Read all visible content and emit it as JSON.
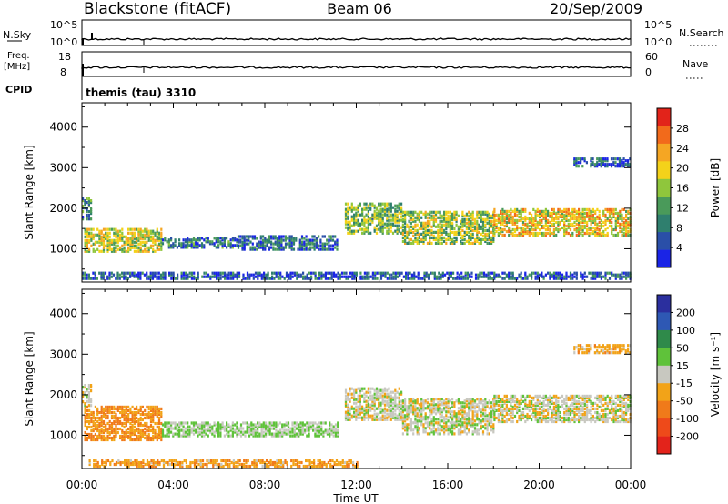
{
  "header": {
    "station": "Blackstone (fitACF)",
    "beam": "Beam 06",
    "date": "20/Sep/2009"
  },
  "top_panels": {
    "nsky_label": "N.Sky",
    "nsky_ticks": [
      "10^5",
      "10^0"
    ],
    "nsearch_label": "N.Search",
    "nsearch_ticks": [
      "10^5",
      "10^0"
    ],
    "freq_label_1": "Freq.",
    "freq_label_2": "[MHz]",
    "freq_ticks": [
      "18",
      "8"
    ],
    "nave_label": "Nave",
    "nave_ticks": [
      "60",
      "0"
    ],
    "cpid_label": "CPID",
    "cpid_text": "themis (tau) 3310"
  },
  "colors": {
    "power": [
      "#1a24e6",
      "#2a4fa8",
      "#2f7f6e",
      "#4a9a5a",
      "#8fc63c",
      "#f4d21a",
      "#f5a623",
      "#f26a1b",
      "#e2231a"
    ],
    "velocity": [
      "#2b2f9e",
      "#2e58b4",
      "#2f8a4a",
      "#5fc23a",
      "#c8c8c0",
      "#f2a318",
      "#f07a1a",
      "#ee4a1a",
      "#e3231b"
    ]
  },
  "chart_data": [
    {
      "type": "heatmap",
      "name": "power",
      "ylabel": "Slant Range [km]",
      "xlabel": "Time UT",
      "xticks": [
        "00:00",
        "04:00",
        "08:00",
        "12:00",
        "16:00",
        "20:00",
        "00:00"
      ],
      "yticks": [
        1000,
        2000,
        3000,
        4000
      ],
      "ylim": [
        180,
        4600
      ],
      "colorbar_label": "Power [dB]",
      "colorbar_ticks": [
        4,
        8,
        12,
        16,
        20,
        24,
        28
      ],
      "colorbar_range": [
        0,
        32
      ],
      "echo_bands": [
        {
          "t0": 0.1,
          "t1": 3.5,
          "r0": 900,
          "r1": 1450,
          "p": 18
        },
        {
          "t0": 0.0,
          "t1": 0.4,
          "r0": 1700,
          "r1": 2200,
          "p": 10
        },
        {
          "t0": 3.5,
          "t1": 6.8,
          "r0": 1000,
          "r1": 1250,
          "p": 8
        },
        {
          "t0": 6.8,
          "t1": 11.2,
          "r0": 950,
          "r1": 1300,
          "p": 7
        },
        {
          "t0": 11.5,
          "t1": 14.0,
          "r0": 1350,
          "r1": 2100,
          "p": 14
        },
        {
          "t0": 14.0,
          "t1": 18.0,
          "r0": 1100,
          "r1": 1900,
          "p": 16
        },
        {
          "t0": 18.0,
          "t1": 24.0,
          "r0": 1300,
          "r1": 1950,
          "p": 20
        },
        {
          "t0": 21.5,
          "t1": 24.0,
          "r0": 3000,
          "r1": 3200,
          "p": 6
        },
        {
          "t0": 0.0,
          "t1": 24.0,
          "r0": 230,
          "r1": 380,
          "p": 6
        }
      ]
    },
    {
      "type": "heatmap",
      "name": "velocity",
      "ylabel": "Slant Range [km]",
      "xlabel": "Time UT",
      "xticks": [
        "00:00",
        "04:00",
        "08:00",
        "12:00",
        "16:00",
        "20:00",
        "00:00"
      ],
      "yticks": [
        1000,
        2000,
        3000,
        4000
      ],
      "ylim": [
        180,
        4600
      ],
      "colorbar_label": "Velocity [m s⁻¹]",
      "colorbar_ticks": [
        "200",
        "100",
        "50",
        "15",
        "-15",
        "-50",
        "-100",
        "-200"
      ],
      "echo_bands": [
        {
          "t0": 0.1,
          "t1": 3.5,
          "r0": 850,
          "r1": 1700,
          "v": -50
        },
        {
          "t0": 0.0,
          "t1": 0.4,
          "r0": 1700,
          "r1": 2200,
          "v": 0
        },
        {
          "t0": 3.5,
          "t1": 11.2,
          "r0": 950,
          "r1": 1300,
          "v": 20
        },
        {
          "t0": 0.3,
          "t1": 12.0,
          "r0": 200,
          "r1": 380,
          "v": -40
        },
        {
          "t0": 11.5,
          "t1": 14.0,
          "r0": 1350,
          "r1": 2150,
          "v": 0
        },
        {
          "t0": 14.0,
          "t1": 18.0,
          "r0": 1000,
          "r1": 1900,
          "v": 0
        },
        {
          "t0": 18.0,
          "t1": 24.0,
          "r0": 1300,
          "r1": 1950,
          "v": 0
        },
        {
          "t0": 21.5,
          "t1": 24.0,
          "r0": 3000,
          "r1": 3200,
          "v": -30
        }
      ]
    }
  ]
}
